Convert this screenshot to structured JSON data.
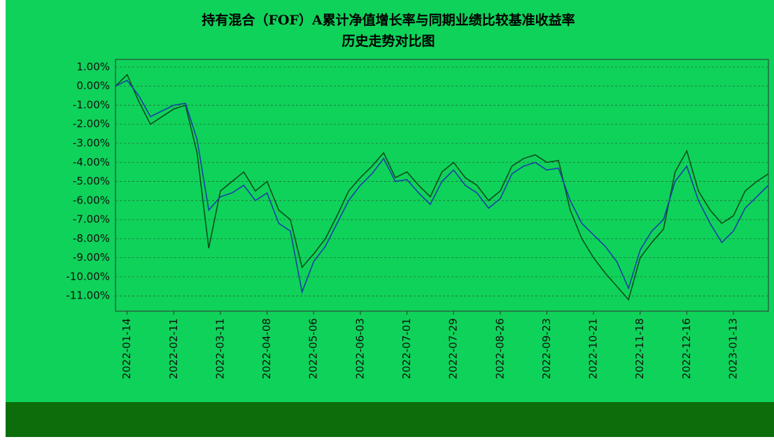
{
  "chart_data": {
    "type": "line",
    "title": "持有混合（FOF）A累计净值增长率与同期业绩比较基准收益率",
    "subtitle": "历史走势对比图",
    "x": [
      "2022-01-07",
      "2022-01-14",
      "2022-01-21",
      "2022-01-28",
      "2022-02-04",
      "2022-02-11",
      "2022-02-18",
      "2022-02-25",
      "2022-03-04",
      "2022-03-11",
      "2022-03-18",
      "2022-03-25",
      "2022-04-01",
      "2022-04-08",
      "2022-04-15",
      "2022-04-22",
      "2022-04-29",
      "2022-05-06",
      "2022-05-13",
      "2022-05-20",
      "2022-05-27",
      "2022-06-03",
      "2022-06-10",
      "2022-06-17",
      "2022-06-24",
      "2022-07-01",
      "2022-07-08",
      "2022-07-15",
      "2022-07-22",
      "2022-07-29",
      "2022-08-05",
      "2022-08-12",
      "2022-08-19",
      "2022-08-26",
      "2022-09-02",
      "2022-09-09",
      "2022-09-16",
      "2022-09-23",
      "2022-09-30",
      "2022-10-07",
      "2022-10-14",
      "2022-10-21",
      "2022-10-28",
      "2022-11-04",
      "2022-11-11",
      "2022-11-18",
      "2022-11-25",
      "2022-12-02",
      "2022-12-09",
      "2022-12-16",
      "2022-12-23",
      "2022-12-30",
      "2023-01-06",
      "2023-01-13",
      "2023-01-20",
      "2023-01-27",
      "2023-02-03"
    ],
    "series": [
      {
        "color": "#0b4f1c",
        "values": [
          0,
          0.6,
          -0.8,
          -2.0,
          -1.6,
          -1.2,
          -1.0,
          -3.5,
          -8.5,
          -5.5,
          -5.0,
          -4.5,
          -5.5,
          -5.0,
          -6.5,
          -7.0,
          -9.5,
          -8.8,
          -8.0,
          -6.8,
          -5.5,
          -4.8,
          -4.2,
          -3.5,
          -4.8,
          -4.5,
          -5.2,
          -5.8,
          -4.5,
          -4.0,
          -4.8,
          -5.2,
          -6.0,
          -5.5,
          -4.2,
          -3.8,
          -3.6,
          -4.0,
          -3.9,
          -6.5,
          -8.0,
          -9.0,
          -9.8,
          -10.5,
          -11.2,
          -9.0,
          -8.2,
          -7.5,
          -4.5,
          -3.4,
          -5.5,
          -6.5,
          -7.2,
          -6.8,
          -5.5,
          -5.0,
          -4.6
        ]
      },
      {
        "color": "#1a3fa8",
        "values": [
          0,
          0.3,
          -0.5,
          -1.6,
          -1.3,
          -1.0,
          -0.9,
          -2.8,
          -6.5,
          -5.8,
          -5.6,
          -5.2,
          -6.0,
          -5.6,
          -7.2,
          -7.6,
          -10.8,
          -9.2,
          -8.4,
          -7.2,
          -6.0,
          -5.2,
          -4.6,
          -3.8,
          -5.0,
          -4.9,
          -5.6,
          -6.2,
          -5.0,
          -4.4,
          -5.2,
          -5.6,
          -6.4,
          -5.9,
          -4.6,
          -4.2,
          -4.0,
          -4.4,
          -4.3,
          -6.0,
          -7.2,
          -7.8,
          -8.4,
          -9.2,
          -10.6,
          -8.6,
          -7.6,
          -7.0,
          -5.0,
          -4.2,
          -6.0,
          -7.2,
          -8.2,
          -7.6,
          -6.4,
          -5.8,
          -5.2
        ]
      }
    ],
    "xlim": [
      "2022-01-07",
      "2023-02-03"
    ],
    "xticks": [
      "2022-01-14",
      "2022-02-11",
      "2022-03-11",
      "2022-04-08",
      "2022-05-06",
      "2022-06-03",
      "2022-07-01",
      "2022-07-29",
      "2022-08-26",
      "2022-09-23",
      "2022-10-21",
      "2022-11-18",
      "2022-12-16",
      "2023-01-13"
    ],
    "ylim": [
      -11.8,
      1.4
    ],
    "yticks": [
      {
        "value": 1,
        "label": "1.00%"
      },
      {
        "value": 0,
        "label": "0.00%"
      },
      {
        "value": -1,
        "label": "-1.00%"
      },
      {
        "value": -2,
        "label": "-2.00%"
      },
      {
        "value": -3,
        "label": "-3.00%"
      },
      {
        "value": -4,
        "label": "-4.00%"
      },
      {
        "value": -5,
        "label": "-5.00%"
      },
      {
        "value": -6,
        "label": "-6.00%"
      },
      {
        "value": -7,
        "label": "-7.00%"
      },
      {
        "value": -8,
        "label": "-8.00%"
      },
      {
        "value": -9,
        "label": "-9.00%"
      },
      {
        "value": -10,
        "label": "-10.00%"
      },
      {
        "value": -11,
        "label": "-11.00%"
      }
    ],
    "grid": true
  }
}
